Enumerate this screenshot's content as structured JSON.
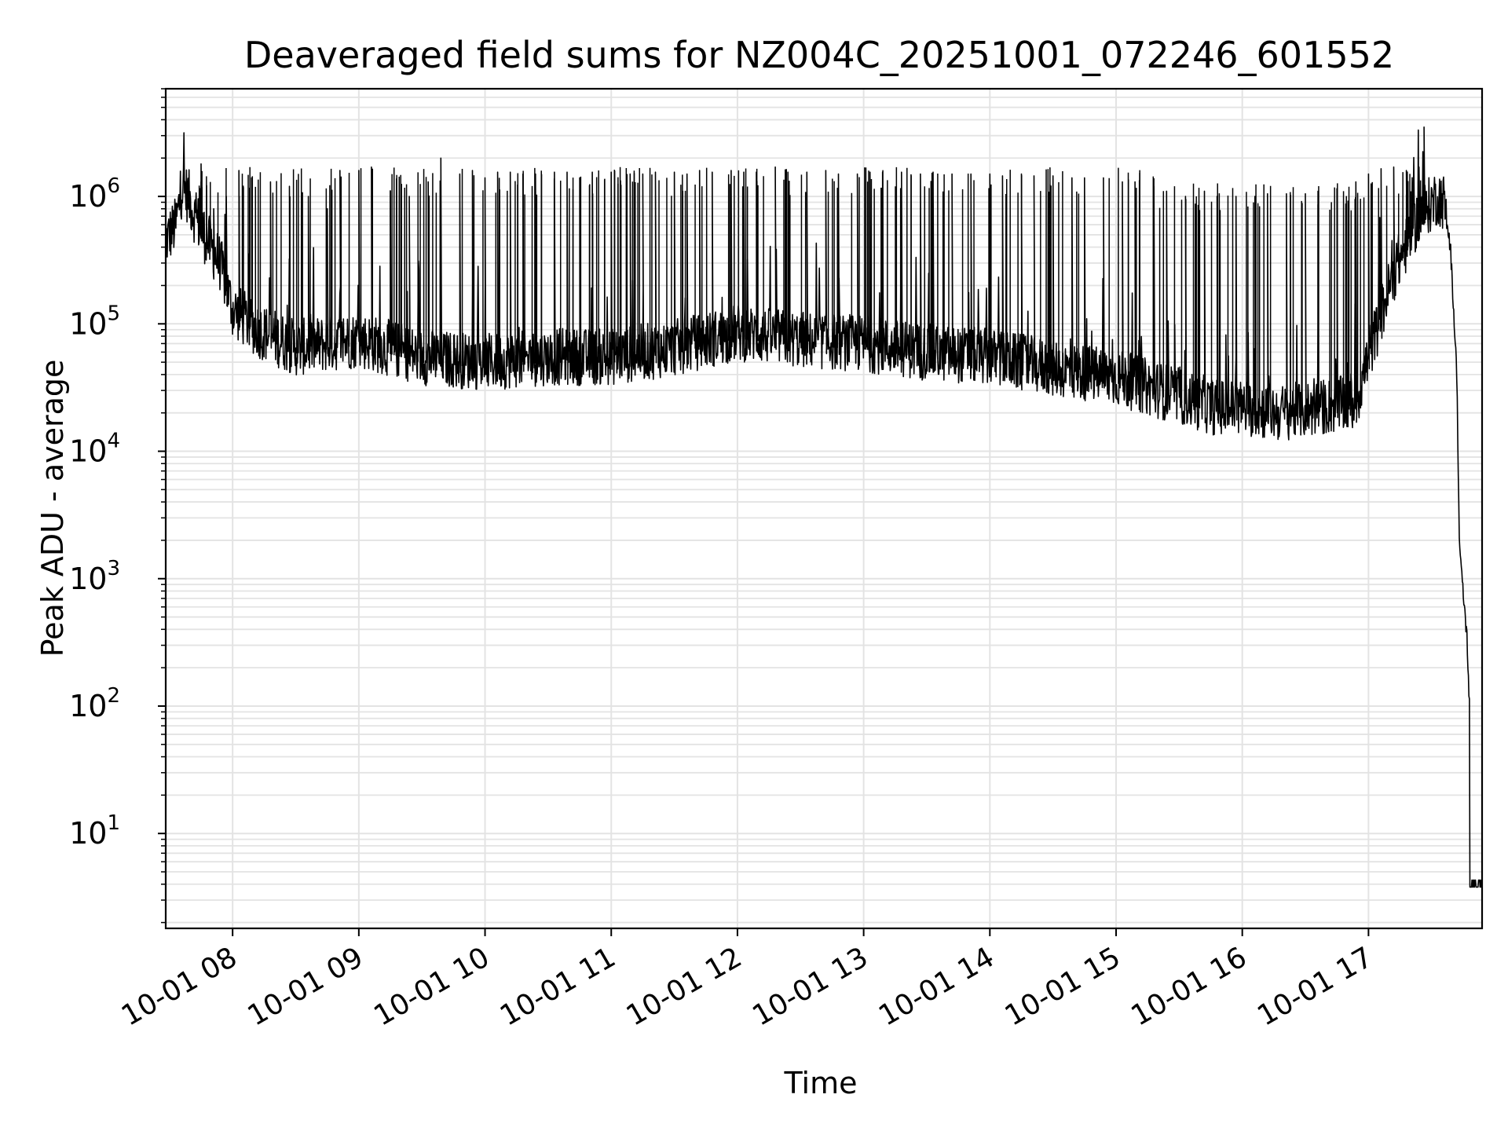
{
  "chart_data": {
    "type": "line",
    "title": "Deaveraged field sums for NZ004C_20251001_072246_601552",
    "xlabel": "Time",
    "ylabel": "Peak ADU - average",
    "yscale": "log",
    "grid": true,
    "grid_color": "#e3e3e3",
    "line_color": "#000000",
    "xlim_hours": [
      7.47,
      17.9
    ],
    "ylim": [
      1.8,
      7000000
    ],
    "x_ticks": [
      {
        "value": 8,
        "label": "10-01 08"
      },
      {
        "value": 9,
        "label": "10-01 09"
      },
      {
        "value": 10,
        "label": "10-01 10"
      },
      {
        "value": 11,
        "label": "10-01 11"
      },
      {
        "value": 12,
        "label": "10-01 12"
      },
      {
        "value": 13,
        "label": "10-01 13"
      },
      {
        "value": 14,
        "label": "10-01 14"
      },
      {
        "value": 15,
        "label": "10-01 15"
      },
      {
        "value": 16,
        "label": "10-01 16"
      },
      {
        "value": 17,
        "label": "10-01 17"
      }
    ],
    "y_ticks": [
      {
        "value": 10,
        "base": "10",
        "exp": "1"
      },
      {
        "value": 100,
        "base": "10",
        "exp": "2"
      },
      {
        "value": 1000,
        "base": "10",
        "exp": "3"
      },
      {
        "value": 10000,
        "base": "10",
        "exp": "4"
      },
      {
        "value": 100000,
        "base": "10",
        "exp": "5"
      },
      {
        "value": 1000000,
        "base": "10",
        "exp": "6"
      }
    ],
    "baseline_series": {
      "name": "baseline",
      "x_hours": [
        7.47,
        7.55,
        7.6,
        7.65,
        7.7,
        7.8,
        7.9,
        8.0,
        8.2,
        8.5,
        9.0,
        9.5,
        10.0,
        10.5,
        11.0,
        11.5,
        12.0,
        12.5,
        13.0,
        13.5,
        14.0,
        14.5,
        15.0,
        15.5,
        15.8,
        16.0,
        16.3,
        16.6,
        16.9,
        17.0,
        17.2,
        17.4,
        17.55,
        17.6,
        17.65,
        17.7,
        17.72,
        17.74,
        17.76,
        17.78,
        17.8,
        17.82,
        17.9
      ],
      "y": [
        450000,
        600000,
        1200000,
        1000000,
        700000,
        450000,
        300000,
        130000,
        90000,
        65000,
        75000,
        55000,
        50000,
        55000,
        55000,
        65000,
        85000,
        75000,
        70000,
        60000,
        55000,
        45000,
        38000,
        27000,
        22000,
        22000,
        20000,
        22000,
        24000,
        55000,
        250000,
        700000,
        1000000,
        900000,
        400000,
        40000,
        2000,
        1000,
        600,
        350,
        100,
        4,
        4
      ]
    },
    "spikes": {
      "name": "spikes",
      "x_hours": [
        7.75,
        7.85,
        7.95,
        8.05,
        8.15,
        8.3,
        8.45,
        8.6,
        8.75,
        8.85,
        9.0,
        9.1,
        9.25,
        9.4,
        9.55,
        9.65,
        9.8,
        9.9,
        10.0,
        10.1,
        10.2,
        10.3,
        10.4,
        10.55,
        10.65,
        10.75,
        10.85,
        11.0,
        11.15,
        11.25,
        11.35,
        11.5,
        11.6,
        11.7,
        11.8,
        11.95,
        12.05,
        12.15,
        12.3,
        12.4,
        12.55,
        12.7,
        12.8,
        12.95,
        13.05,
        13.15,
        13.3,
        13.45,
        13.55,
        13.7,
        13.85,
        14.0,
        14.1,
        14.25,
        14.35,
        14.5,
        14.65,
        14.75,
        14.9,
        15.05,
        15.15,
        15.3,
        15.4,
        15.55,
        15.7,
        15.8,
        15.95,
        16.1,
        16.2,
        16.35,
        16.5,
        16.6,
        16.75,
        16.9,
        17.0,
        17.1,
        17.2,
        17.3,
        17.4,
        17.44
      ],
      "y": [
        1800000,
        800000,
        1000000,
        1600000,
        1400000,
        1300000,
        1200000,
        1000000,
        800000,
        1600000,
        1600000,
        1700000,
        1100000,
        1000000,
        1300000,
        2000000,
        1500000,
        1600000,
        1400000,
        1550000,
        1550000,
        1500000,
        1500000,
        1550000,
        1550000,
        1400000,
        1550000,
        1550000,
        1500000,
        1500000,
        1550000,
        1550000,
        1500000,
        1600000,
        1550000,
        1600000,
        1550000,
        1550000,
        1700000,
        1550000,
        1550000,
        1600000,
        1500000,
        1500000,
        1550000,
        1550000,
        1550000,
        1500000,
        1550000,
        1500000,
        1500000,
        1500000,
        1450000,
        1500000,
        1450000,
        1450000,
        1400000,
        1400000,
        1400000,
        1300000,
        1300000,
        1200000,
        1100000,
        1000000,
        1100000,
        1000000,
        1000000,
        1000000,
        1050000,
        1050000,
        1050000,
        1100000,
        1150000,
        1300000,
        1500000,
        1650000,
        1700000,
        1600000,
        1700000,
        3500000
      ]
    }
  }
}
